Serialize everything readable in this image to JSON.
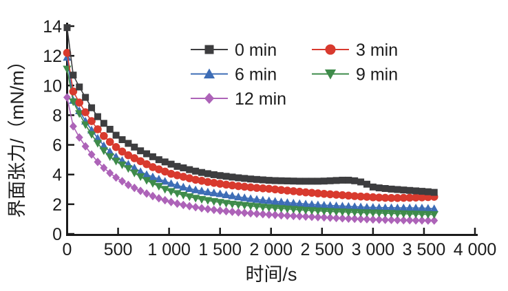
{
  "chart_data": {
    "type": "line",
    "title": "",
    "xlabel": "时间/s",
    "ylabel": "界面张力/（mN/m）",
    "xlim": [
      0,
      4000
    ],
    "ylim": [
      0,
      14
    ],
    "x_ticks": [
      0,
      500,
      1000,
      1500,
      2000,
      2500,
      3000,
      3500,
      4000
    ],
    "x_tick_labels": [
      "0",
      "500",
      "1 000",
      "1 500",
      "2 000",
      "2 500",
      "3 000",
      "3 500",
      "4 000"
    ],
    "y_ticks": [
      0,
      2,
      4,
      6,
      8,
      10,
      12,
      14
    ],
    "y_tick_labels": [
      "0",
      "2",
      "4",
      "6",
      "8",
      "10",
      "12",
      "14"
    ],
    "grid": false,
    "legend_position": "inside-top-center",
    "x_start": 0,
    "x_step": 60,
    "series": [
      {
        "name": "0 min",
        "marker": "square",
        "color": "#3d3d3f",
        "values": [
          13.9,
          10.7,
          9.9,
          9.2,
          8.5,
          7.9,
          7.45,
          7.05,
          6.65,
          6.35,
          6.1,
          5.85,
          5.6,
          5.4,
          5.2,
          5.0,
          4.85,
          4.7,
          4.55,
          4.45,
          4.33,
          4.23,
          4.14,
          4.06,
          3.99,
          3.93,
          3.88,
          3.83,
          3.78,
          3.74,
          3.7,
          3.67,
          3.64,
          3.61,
          3.59,
          3.58,
          3.57,
          3.56,
          3.55,
          3.55,
          3.55,
          3.55,
          3.56,
          3.58,
          3.6,
          3.62,
          3.62,
          3.58,
          3.5,
          3.35,
          3.16,
          3.1,
          3.06,
          3.02,
          2.99,
          2.96,
          2.93,
          2.9,
          2.87,
          2.84,
          2.8
        ]
      },
      {
        "name": "3 min",
        "marker": "circle",
        "color": "#d83a2e",
        "values": [
          12.2,
          9.6,
          8.85,
          8.2,
          7.6,
          7.05,
          6.6,
          6.2,
          5.85,
          5.55,
          5.3,
          5.1,
          4.9,
          4.7,
          4.5,
          4.35,
          4.2,
          4.05,
          3.95,
          3.85,
          3.75,
          3.65,
          3.58,
          3.5,
          3.44,
          3.38,
          3.32,
          3.27,
          3.22,
          3.18,
          3.14,
          3.1,
          3.07,
          3.04,
          3.0,
          2.96,
          2.92,
          2.88,
          2.84,
          2.8,
          2.77,
          2.73,
          2.7,
          2.67,
          2.64,
          2.61,
          2.58,
          2.55,
          2.52,
          2.5,
          2.47,
          2.45,
          2.43,
          2.42,
          2.42,
          2.43,
          2.44,
          2.45,
          2.46,
          2.48,
          2.5
        ]
      },
      {
        "name": "6 min",
        "marker": "triangle-up",
        "color": "#3d6db6",
        "values": [
          11.9,
          9.0,
          8.3,
          7.6,
          7.0,
          6.45,
          5.95,
          5.55,
          5.2,
          4.95,
          4.7,
          4.45,
          4.2,
          4.0,
          3.85,
          3.7,
          3.55,
          3.4,
          3.28,
          3.16,
          3.06,
          2.97,
          2.9,
          2.83,
          2.77,
          2.71,
          2.64,
          2.57,
          2.5,
          2.44,
          2.38,
          2.33,
          2.28,
          2.24,
          2.2,
          2.16,
          2.12,
          2.08,
          2.05,
          2.02,
          1.99,
          1.96,
          1.94,
          1.92,
          1.9,
          1.88,
          1.86,
          1.84,
          1.82,
          1.8,
          1.79,
          1.78,
          1.77,
          1.77,
          1.76,
          1.76,
          1.76,
          1.75,
          1.75,
          1.73,
          1.7
        ]
      },
      {
        "name": "9 min",
        "marker": "triangle-down",
        "color": "#3e8b4a",
        "values": [
          11.1,
          8.9,
          8.1,
          7.35,
          6.7,
          6.1,
          5.6,
          5.2,
          4.9,
          4.65,
          4.4,
          4.1,
          3.85,
          3.6,
          3.4,
          3.2,
          3.0,
          2.85,
          2.72,
          2.6,
          2.5,
          2.4,
          2.32,
          2.25,
          2.18,
          2.12,
          2.06,
          2.0,
          1.96,
          1.92,
          1.88,
          1.84,
          1.8,
          1.77,
          1.74,
          1.71,
          1.68,
          1.65,
          1.62,
          1.59,
          1.57,
          1.55,
          1.53,
          1.51,
          1.49,
          1.48,
          1.46,
          1.45,
          1.43,
          1.42,
          1.41,
          1.4,
          1.39,
          1.38,
          1.36,
          1.35,
          1.34,
          1.33,
          1.32,
          1.31,
          1.3
        ]
      },
      {
        "name": "12 min",
        "marker": "diamond",
        "color": "#ad63b8",
        "values": [
          9.2,
          7.25,
          6.5,
          5.9,
          5.35,
          4.85,
          4.45,
          4.1,
          3.8,
          3.55,
          3.3,
          3.1,
          2.9,
          2.72,
          2.55,
          2.4,
          2.27,
          2.15,
          2.04,
          1.95,
          1.87,
          1.8,
          1.73,
          1.67,
          1.62,
          1.57,
          1.53,
          1.49,
          1.45,
          1.42,
          1.39,
          1.36,
          1.33,
          1.3,
          1.28,
          1.25,
          1.23,
          1.21,
          1.19,
          1.17,
          1.15,
          1.13,
          1.11,
          1.09,
          1.07,
          1.05,
          1.03,
          1.02,
          1.0,
          0.99,
          0.97,
          0.96,
          0.95,
          0.94,
          0.93,
          0.92,
          0.92,
          0.91,
          0.91,
          0.9,
          0.9
        ]
      }
    ],
    "axis_color": "#1a1a1a",
    "text_color": "#1c1c1c"
  }
}
